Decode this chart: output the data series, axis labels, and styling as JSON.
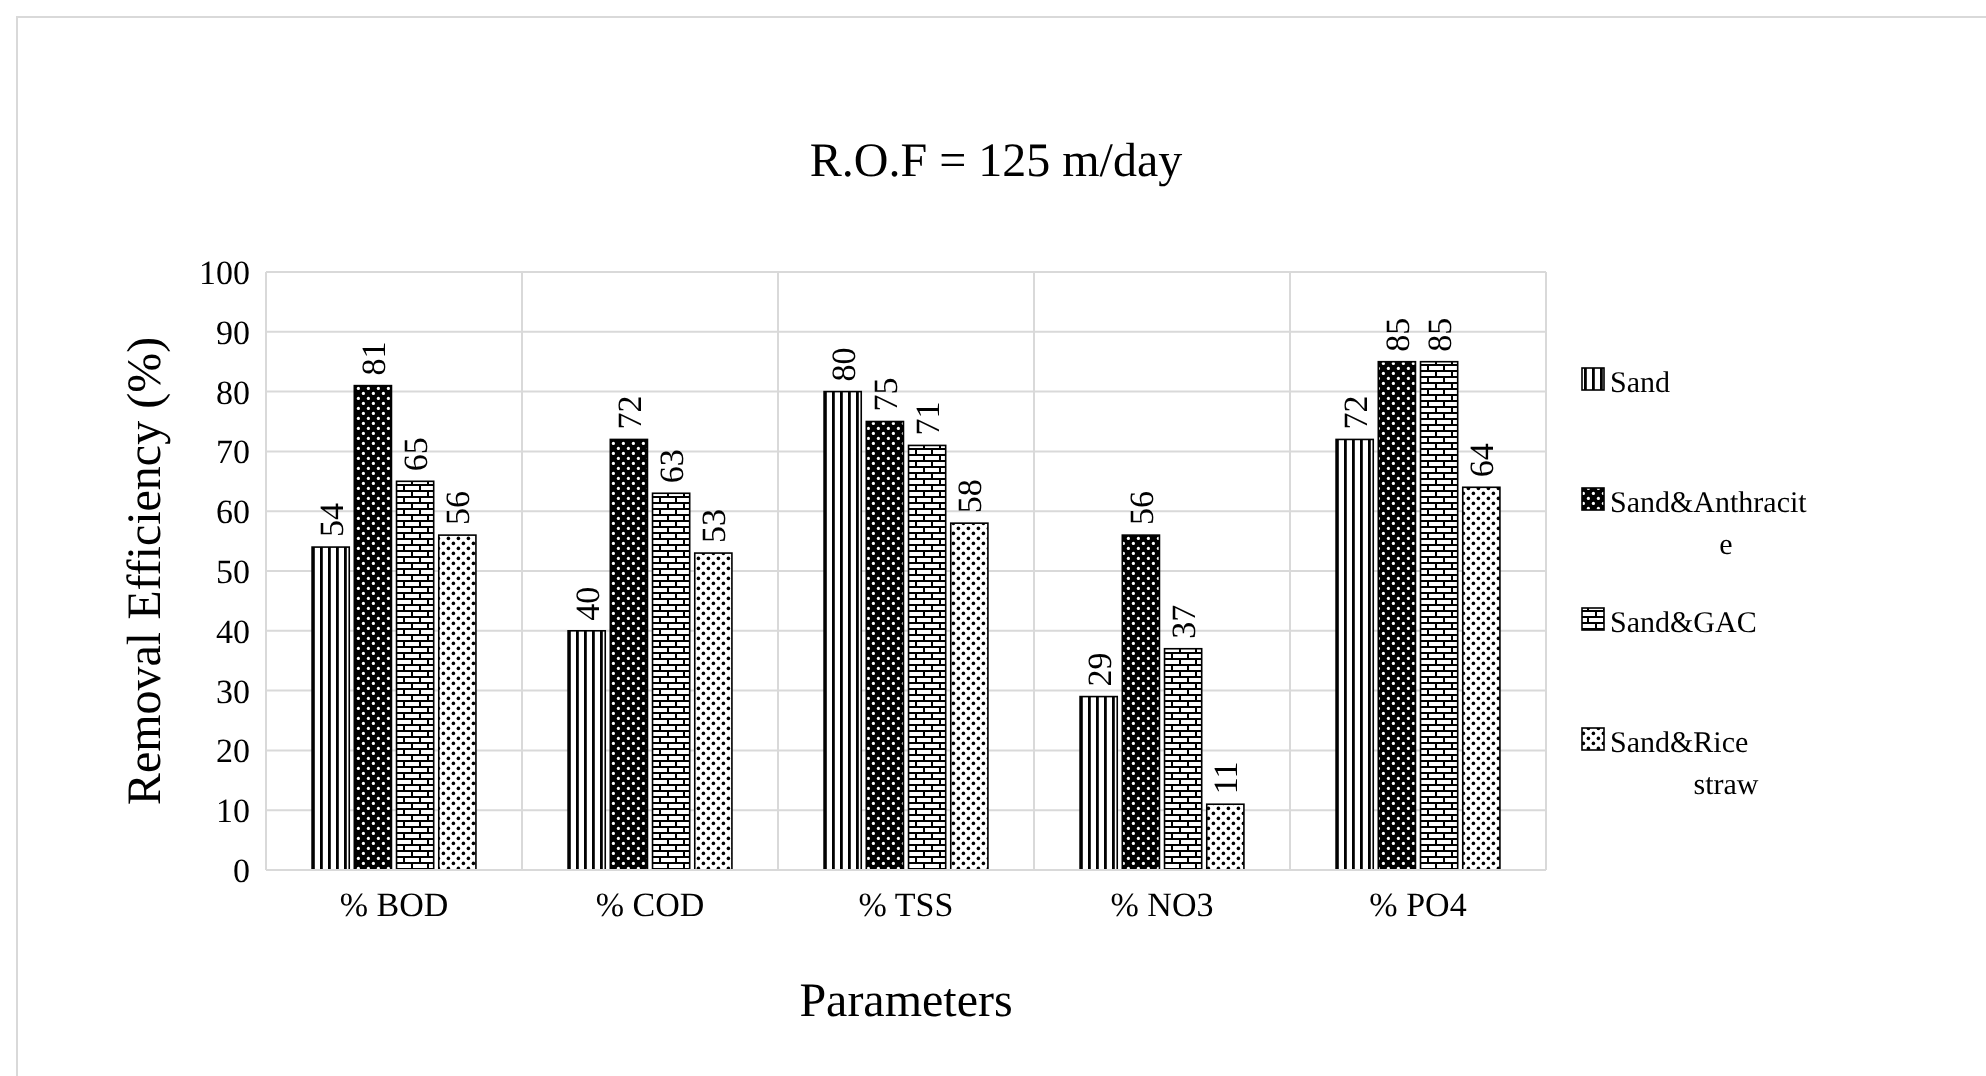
{
  "chart_data": {
    "type": "bar",
    "title": "R.O.F = 125 m/day",
    "xlabel": "Parameters",
    "ylabel": "Removal Efficiency  (%)",
    "categories": [
      "% BOD",
      "% COD",
      "% TSS",
      "% NO3",
      "% PO4"
    ],
    "series": [
      {
        "name": "Sand",
        "color": "#000000",
        "values": [
          54,
          40,
          80,
          29,
          72
        ]
      },
      {
        "name": "Sand&Anthracite",
        "color": "#000000",
        "values": [
          81,
          72,
          75,
          56,
          85
        ]
      },
      {
        "name": "Sand&GAC",
        "color": "#000000",
        "values": [
          65,
          63,
          71,
          37,
          85
        ]
      },
      {
        "name": "Sand&Rice straw",
        "color": "#000000",
        "values": [
          56,
          53,
          58,
          11,
          64
        ]
      }
    ],
    "ylim": [
      0,
      100
    ],
    "yticks": [
      0,
      10,
      20,
      30,
      40,
      50,
      60,
      70,
      80,
      90,
      100
    ],
    "grid": true,
    "legend": "right",
    "data_labels": true
  }
}
